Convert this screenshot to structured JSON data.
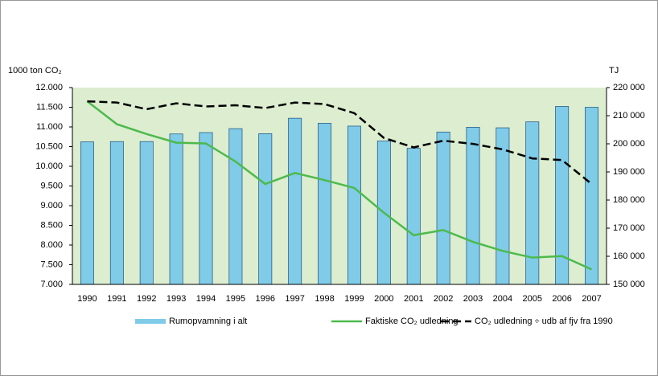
{
  "chart_data": {
    "type": "bar",
    "y_label": "1000 ton CO₂",
    "y2_label": "TJ",
    "categories": [
      "1990",
      "1991",
      "1992",
      "1993",
      "1994",
      "1995",
      "1996",
      "1997",
      "1998",
      "1999",
      "2000",
      "2001",
      "2002",
      "2003",
      "2004",
      "2005",
      "2006",
      "2007"
    ],
    "series": [
      {
        "name": "Rumopvamning i alt",
        "type": "bar",
        "axis": "y2",
        "color": "#7fcbe8",
        "values": [
          200700,
          200800,
          200800,
          203500,
          204000,
          205400,
          203600,
          209100,
          207300,
          206300,
          201000,
          198400,
          204200,
          205900,
          205700,
          207800,
          213300,
          213000
        ]
      },
      {
        "name": "Faktiske CO₂ udledning",
        "type": "line",
        "color": "#4cba4c",
        "values": [
          11.65,
          11.07,
          10.82,
          10.6,
          10.58,
          10.12,
          9.55,
          9.83,
          9.65,
          9.45,
          8.82,
          8.25,
          8.38,
          8.08,
          7.85,
          7.68,
          7.72,
          7.38
        ]
      },
      {
        "name": "CO₂ udledning ÷ udb af fjv fra 1990",
        "type": "line",
        "dashed": true,
        "color": "#000000",
        "values": [
          11.65,
          11.62,
          11.45,
          11.6,
          11.52,
          11.55,
          11.48,
          11.62,
          11.58,
          11.35,
          10.72,
          10.48,
          10.65,
          10.57,
          10.43,
          10.2,
          10.16,
          9.55
        ]
      }
    ],
    "ylim": [
      7,
      12
    ],
    "yticks": [
      {
        "value": 7,
        "label": "7.000"
      },
      {
        "value": 7.5,
        "label": "7.500"
      },
      {
        "value": 8,
        "label": "8.000"
      },
      {
        "value": 8.5,
        "label": "8.500"
      },
      {
        "value": 9,
        "label": "9.000"
      },
      {
        "value": 9.5,
        "label": "9.500"
      },
      {
        "value": 10,
        "label": "10.000"
      },
      {
        "value": 10.5,
        "label": "10.500"
      },
      {
        "value": 11,
        "label": "11.000"
      },
      {
        "value": 11.5,
        "label": "11.500"
      },
      {
        "value": 12,
        "label": "12.000"
      }
    ],
    "y2lim": [
      150000,
      220000
    ],
    "y2ticks": [
      {
        "value": 150000,
        "label": "150 000"
      },
      {
        "value": 160000,
        "label": "160 000"
      },
      {
        "value": 170000,
        "label": "170 000"
      },
      {
        "value": 180000,
        "label": "180 000"
      },
      {
        "value": 190000,
        "label": "190 000"
      },
      {
        "value": 200000,
        "label": "200 000"
      },
      {
        "value": 210000,
        "label": "210 000"
      },
      {
        "value": 220000,
        "label": "220 000"
      }
    ],
    "grid": false,
    "plot_background": "#dcedd0",
    "legend": "bottom"
  }
}
